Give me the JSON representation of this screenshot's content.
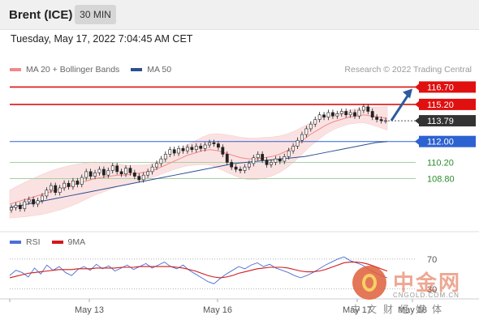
{
  "header": {
    "instrument": "Brent (ICE)",
    "timeframe": "30 MIN"
  },
  "datetime": "Tuesday, May 17, 2022 7:04:45 AM CET",
  "legend": {
    "ma20_label": "MA 20 + Bollinger Bands",
    "ma20_color": "#f08a8a",
    "ma50_label": "MA 50",
    "ma50_color": "#2c4f8f"
  },
  "copyright": "Research © 2022 Trading Central",
  "rsi_legend": {
    "rsi_label": "RSI",
    "rsi_color": "#4a6fd6",
    "ma_label": "9MA",
    "ma_color": "#d11a1a"
  },
  "watermark": {
    "chinese": "中金网",
    "domain": "CNGOLD.COM.CN",
    "sub": "中文财经媒体"
  },
  "chart_data": [
    {
      "type": "candlestick",
      "title": "",
      "ylim": [
        104.5,
        117.5
      ],
      "x_labels": [
        "May 13",
        "May 16",
        "May 17",
        "May 18"
      ],
      "current_price": 113.79,
      "levels": [
        {
          "value": 116.7,
          "label": "116.70",
          "kind": "resistance",
          "color": "#e01010"
        },
        {
          "value": 115.2,
          "label": "115.20",
          "kind": "resistance",
          "color": "#e01010"
        },
        {
          "value": 113.79,
          "label": "113.79",
          "kind": "current",
          "color": "#333333"
        },
        {
          "value": 112.0,
          "label": "112.00",
          "kind": "pivot",
          "color": "#2d62d1"
        },
        {
          "value": 110.2,
          "label": "110.20",
          "kind": "support",
          "color": "#2c8c2c"
        },
        {
          "value": 108.8,
          "label": "108.80",
          "kind": "support",
          "color": "#2c8c2c"
        }
      ],
      "forecast_arrow": {
        "from": 113.8,
        "to": 116.7,
        "color": "#2c5aa0"
      },
      "closes": [
        106.3,
        106.5,
        106.2,
        106.8,
        107.0,
        106.6,
        106.9,
        107.3,
        107.8,
        108.2,
        107.6,
        108.0,
        108.4,
        108.1,
        108.6,
        108.3,
        108.9,
        109.4,
        109.0,
        109.3,
        109.6,
        109.1,
        109.5,
        109.9,
        109.4,
        109.2,
        109.7,
        109.3,
        109.0,
        108.7,
        109.1,
        109.4,
        109.8,
        110.1,
        110.5,
        110.9,
        111.3,
        111.0,
        111.4,
        111.2,
        111.5,
        111.3,
        111.6,
        111.4,
        111.7,
        111.9,
        111.8,
        111.5,
        110.9,
        110.2,
        109.8,
        109.6,
        109.5,
        109.8,
        110.1,
        110.6,
        110.9,
        110.4,
        110.0,
        110.2,
        110.5,
        110.3,
        110.7,
        111.2,
        111.6,
        112.1,
        112.6,
        113.1,
        113.5,
        113.9,
        114.3,
        114.1,
        114.5,
        114.2,
        114.4,
        114.6,
        114.3,
        114.5,
        114.2,
        114.7,
        115.0,
        114.6,
        114.1,
        113.9,
        113.8,
        113.8
      ],
      "ma20": [
        106.6,
        106.8,
        107.0,
        107.2,
        107.4,
        107.6,
        107.8,
        108.0,
        108.2,
        108.4,
        108.6,
        108.8,
        108.9,
        109.0,
        109.1,
        109.1,
        109.2,
        109.3,
        109.4,
        109.6,
        109.9,
        110.2,
        110.5,
        110.8,
        111.0,
        111.2,
        111.3,
        111.2,
        111.0,
        110.8,
        110.6,
        110.5,
        110.5,
        110.6,
        110.7,
        110.9,
        111.2,
        111.6,
        112.1,
        112.6,
        113.0,
        113.4,
        113.7,
        113.9,
        114.1,
        114.2,
        114.3,
        114.2,
        114.1,
        114.0
      ],
      "ma50": [
        106.3,
        106.5,
        106.7,
        106.9,
        107.1,
        107.3,
        107.5,
        107.7,
        107.9,
        108.1,
        108.3,
        108.5,
        108.7,
        108.9,
        109.1,
        109.3,
        109.5,
        109.7,
        109.9,
        110.1,
        110.2,
        110.3,
        110.4,
        110.5,
        110.6,
        110.7,
        110.9,
        111.1,
        111.3,
        111.5,
        111.7,
        111.9,
        112.0
      ]
    },
    {
      "type": "line",
      "title": "",
      "ylabel": "",
      "ylim": [
        20,
        85
      ],
      "levels": [
        {
          "value": 70,
          "label": "70"
        },
        {
          "value": 30,
          "label": "30"
        }
      ],
      "series": [
        {
          "name": "RSI",
          "values": [
            48,
            55,
            52,
            46,
            58,
            50,
            62,
            55,
            60,
            52,
            48,
            56,
            60,
            55,
            63,
            57,
            61,
            54,
            58,
            62,
            56,
            60,
            64,
            58,
            62,
            66,
            60,
            57,
            62,
            55,
            50,
            45,
            40,
            37,
            44,
            50,
            55,
            60,
            57,
            62,
            65,
            60,
            63,
            58,
            55,
            52,
            48,
            45,
            48,
            52,
            57,
            62,
            66,
            70,
            73,
            68,
            65,
            62,
            56,
            52,
            48,
            45
          ]
        },
        {
          "name": "9MA",
          "values": [
            45,
            47,
            49,
            51,
            52,
            53,
            54,
            55,
            56,
            56,
            56,
            57,
            57,
            57,
            58,
            58,
            58,
            58,
            59,
            59,
            59,
            60,
            60,
            60,
            60,
            60,
            60,
            59,
            58,
            56,
            54,
            51,
            48,
            46,
            45,
            46,
            48,
            51,
            53,
            55,
            57,
            58,
            59,
            59,
            59,
            58,
            56,
            54,
            53,
            53,
            54,
            56,
            59,
            62,
            65,
            66,
            66,
            65,
            63,
            60,
            57,
            54
          ]
        }
      ]
    }
  ]
}
